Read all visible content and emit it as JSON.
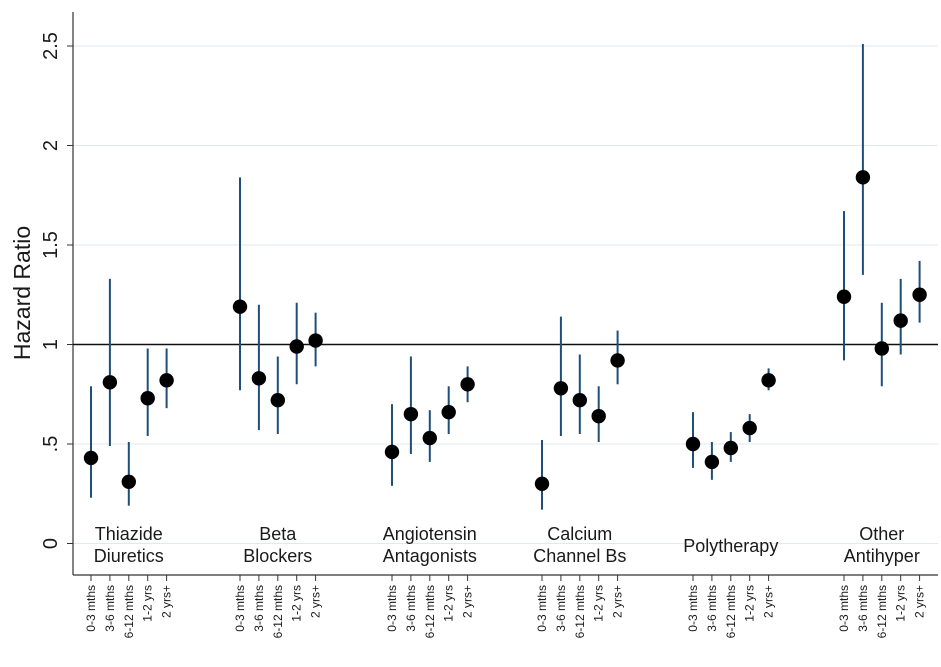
{
  "chart_data": {
    "type": "scatter",
    "ylabel": "Hazard Ratio",
    "ylim": [
      -0.1,
      2.6
    ],
    "yticks": [
      0,
      0.5,
      1,
      1.5,
      2,
      2.5
    ],
    "ytick_labels": [
      "0",
      ".5",
      "1",
      "1.5",
      "2",
      "2.5"
    ],
    "reference_line": 1,
    "grid": "horizontal",
    "period_labels": [
      "0-3 mths",
      "3-6 mths",
      "6-12 mths",
      "1-2 yrs",
      "2 yrs+"
    ],
    "groups": [
      {
        "label": [
          "Thiazide",
          "Diuretics"
        ],
        "points": [
          {
            "hr": 0.43,
            "lo": 0.23,
            "hi": 0.79
          },
          {
            "hr": 0.81,
            "lo": 0.49,
            "hi": 1.33
          },
          {
            "hr": 0.31,
            "lo": 0.19,
            "hi": 0.51
          },
          {
            "hr": 0.73,
            "lo": 0.54,
            "hi": 0.98
          },
          {
            "hr": 0.82,
            "lo": 0.68,
            "hi": 0.98
          }
        ]
      },
      {
        "label": [
          "Beta",
          "Blockers"
        ],
        "points": [
          {
            "hr": 1.19,
            "lo": 0.77,
            "hi": 1.84
          },
          {
            "hr": 0.83,
            "lo": 0.57,
            "hi": 1.2
          },
          {
            "hr": 0.72,
            "lo": 0.55,
            "hi": 0.94
          },
          {
            "hr": 0.99,
            "lo": 0.8,
            "hi": 1.21
          },
          {
            "hr": 1.02,
            "lo": 0.89,
            "hi": 1.16
          }
        ]
      },
      {
        "label": [
          "Angiotensin",
          "Antagonists"
        ],
        "points": [
          {
            "hr": 0.46,
            "lo": 0.29,
            "hi": 0.7
          },
          {
            "hr": 0.65,
            "lo": 0.45,
            "hi": 0.94
          },
          {
            "hr": 0.53,
            "lo": 0.41,
            "hi": 0.67
          },
          {
            "hr": 0.66,
            "lo": 0.55,
            "hi": 0.79
          },
          {
            "hr": 0.8,
            "lo": 0.71,
            "hi": 0.89
          }
        ]
      },
      {
        "label": [
          "Calcium",
          "Channel Bs"
        ],
        "points": [
          {
            "hr": 0.3,
            "lo": 0.17,
            "hi": 0.52
          },
          {
            "hr": 0.78,
            "lo": 0.54,
            "hi": 1.14
          },
          {
            "hr": 0.72,
            "lo": 0.55,
            "hi": 0.95
          },
          {
            "hr": 0.64,
            "lo": 0.51,
            "hi": 0.79
          },
          {
            "hr": 0.92,
            "lo": 0.8,
            "hi": 1.07
          }
        ]
      },
      {
        "label": [
          "Polytherapy"
        ],
        "points": [
          {
            "hr": 0.5,
            "lo": 0.38,
            "hi": 0.66
          },
          {
            "hr": 0.41,
            "lo": 0.32,
            "hi": 0.51
          },
          {
            "hr": 0.48,
            "lo": 0.41,
            "hi": 0.56
          },
          {
            "hr": 0.58,
            "lo": 0.51,
            "hi": 0.65
          },
          {
            "hr": 0.82,
            "lo": 0.77,
            "hi": 0.88
          }
        ]
      },
      {
        "label": [
          "Other",
          "Antihyper"
        ],
        "points": [
          {
            "hr": 1.24,
            "lo": 0.92,
            "hi": 1.67
          },
          {
            "hr": 1.84,
            "lo": 1.35,
            "hi": 2.51
          },
          {
            "hr": 0.98,
            "lo": 0.79,
            "hi": 1.21
          },
          {
            "hr": 1.12,
            "lo": 0.95,
            "hi": 1.33
          },
          {
            "hr": 1.25,
            "lo": 1.11,
            "hi": 1.42
          }
        ]
      }
    ]
  }
}
